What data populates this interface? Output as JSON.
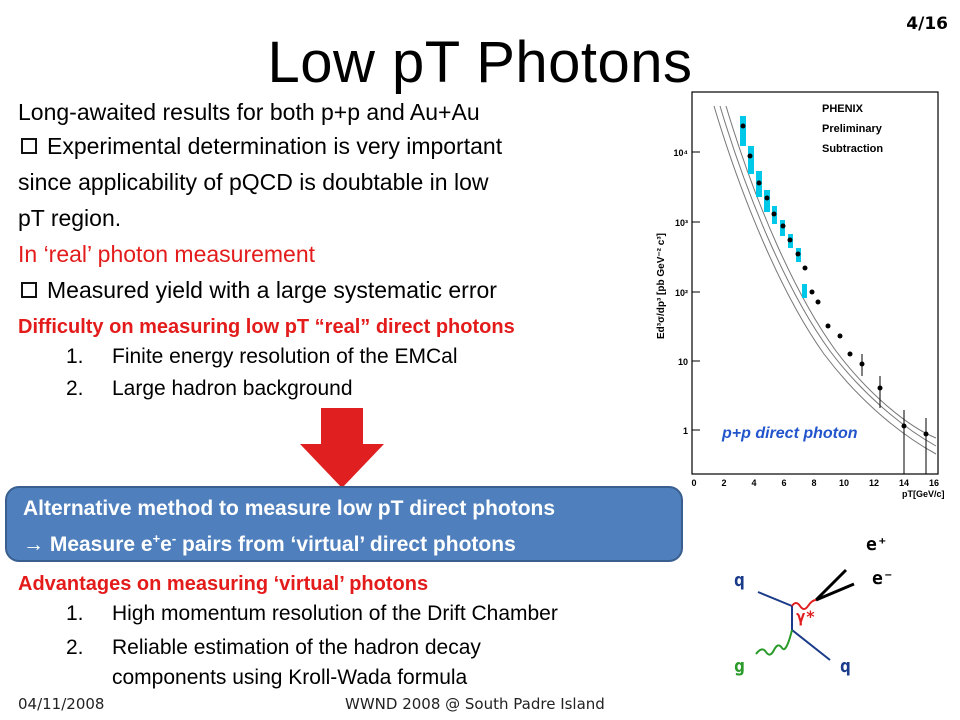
{
  "slide": {
    "title": "Low pT Photons",
    "page_number": "4/16",
    "lines": {
      "l1": "Long-awaited results for both p+p and Au+Au",
      "l2": "Experimental determination is very important",
      "l3": "since applicability of pQCD is doubtable in low",
      "l4": "pT region.",
      "l5": "In ‘real’ photon measurement",
      "l6": "Measured yield with a large systematic error",
      "l7": "Difficulty on measuring low pT “real” direct photons",
      "l8_num": "1.",
      "l8": "Finite energy resolution of the EMCal",
      "l9_num": "2.",
      "l9": "Large hadron background"
    },
    "box": {
      "line1": "Alternative method to measure low pT direct photons",
      "line2_prefix": "→ Measure e",
      "line2_sup1": "+",
      "line2_mid": "e",
      "line2_sup2": "-",
      "line2_suffix": " pairs from ‘virtual’ direct photons"
    },
    "advantages": {
      "heading": "Advantages on measuring ‘virtual’ photons",
      "i1_num": "1.",
      "i1": "High momentum resolution of the Drift Chamber",
      "i2_num": "2.",
      "i2a": "Reliable estimation of the hadron decay",
      "i2b": "components using Kroll-Wada formula"
    },
    "footer": {
      "date": "04/11/2008",
      "venue": "WWND 2008 @ South Padre Island"
    }
  },
  "plot": {
    "legend": [
      "PHENIX",
      "Preliminary",
      "Subtraction"
    ],
    "caption": "p+p direct photon",
    "ylabel": "Ed³σ/dp³ [pb GeV⁻² c³]",
    "xlabel": "pT[GeV/c]",
    "y_ticks": [
      "10⁴",
      "10³",
      "10²",
      "10",
      "1"
    ],
    "x_ticks": [
      "0",
      "2",
      "4",
      "6",
      "8",
      "10",
      "12",
      "14",
      "16"
    ],
    "marker_color": "#00c8e8"
  },
  "feynman": {
    "ep": "e⁺",
    "em": "e⁻",
    "q1": "q",
    "q2": "q",
    "g": "g",
    "gamma": "γ*"
  },
  "colors": {
    "accent_red": "#e31b1b",
    "box_blue": "#4f80bd",
    "arrow_red": "#e02020"
  }
}
